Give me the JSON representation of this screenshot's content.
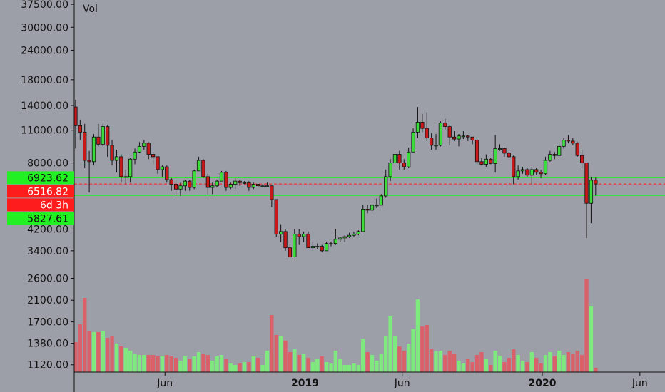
{
  "chart_data": {
    "type": "candlestick",
    "volume_label": "Vol",
    "log_scale": true,
    "ylim": [
      1043,
      39130
    ],
    "yticks": [
      {
        "value": 37500,
        "label": "37500.00"
      },
      {
        "value": 30000,
        "label": "30000.00"
      },
      {
        "value": 24000,
        "label": "24000.00"
      },
      {
        "value": 18000,
        "label": "18000.00"
      },
      {
        "value": 14000,
        "label": "14000.00"
      },
      {
        "value": 11000,
        "label": "11000.00"
      },
      {
        "value": 8000,
        "label": "8000.00"
      },
      {
        "value": 4200,
        "label": "4200.00"
      },
      {
        "value": 3400,
        "label": "3400.00"
      },
      {
        "value": 2600,
        "label": "2600.00"
      },
      {
        "value": 2100,
        "label": "2100.00"
      },
      {
        "value": 1700,
        "label": "1700.00"
      },
      {
        "value": 1380,
        "label": "1380.00"
      },
      {
        "value": 1120,
        "label": "1120.00"
      }
    ],
    "xlim": [
      -0.3,
      129.2
    ],
    "xticks": [
      {
        "value": 19.6,
        "label": "Jun"
      },
      {
        "value": 50.3,
        "label": "2019"
      },
      {
        "value": 71.6,
        "label": "Jun"
      },
      {
        "value": 102.3,
        "label": "2020"
      },
      {
        "value": 123.7,
        "label": "Jun"
      }
    ],
    "up_color": "#3ddc3d",
    "down_color": "#c81818",
    "volume_up_color": "#7fe87f",
    "volume_down_color": "#d9626a",
    "vlim": [
      0,
      140
    ],
    "open": [
      13800,
      11500,
      10800,
      8200,
      8100,
      10300,
      9600,
      11400,
      9500,
      8200,
      8500,
      7000,
      7000,
      8300,
      8900,
      9400,
      9700,
      8700,
      8500,
      7500,
      7700,
      6800,
      6500,
      6200,
      6400,
      6700,
      6300,
      7400,
      8200,
      7000,
      6300,
      6400,
      6700,
      7300,
      6300,
      6500,
      6700,
      6600,
      6600,
      6300,
      6500,
      6400,
      6400,
      6400,
      5600,
      4000,
      4100,
      3500,
      3200,
      4000,
      3900,
      4000,
      3500,
      3550,
      3550,
      3400,
      3650,
      3650,
      3800,
      3850,
      3900,
      3950,
      4000,
      4100,
      5100,
      5050,
      5300,
      5300,
      5800,
      7000,
      8000,
      8700,
      8000,
      7700,
      8900,
      10800,
      11900,
      11200,
      10200,
      9500,
      9500,
      11800,
      11400,
      10300,
      10100,
      10400,
      10400,
      10300,
      10000,
      8100,
      7900,
      8300,
      7950,
      9200,
      9200,
      8800,
      8500,
      7000,
      7400,
      7500,
      7100,
      7500,
      7300,
      7200,
      8200,
      8700,
      8600,
      9400,
      10000,
      9900,
      9700,
      8600,
      8000,
      5400,
      6760
    ],
    "high": [
      14800,
      12200,
      11700,
      9000,
      10600,
      11700,
      11700,
      11600,
      10000,
      9100,
      8700,
      7500,
      8400,
      9200,
      9800,
      10000,
      9800,
      8900,
      8500,
      7800,
      7800,
      6900,
      6800,
      6600,
      6800,
      6800,
      7500,
      8500,
      8300,
      7200,
      6600,
      6800,
      7400,
      7400,
      6600,
      6900,
      6800,
      6700,
      6700,
      6600,
      6500,
      6500,
      6600,
      6400,
      5600,
      4400,
      4200,
      3600,
      4200,
      4200,
      4100,
      4100,
      3700,
      3650,
      3600,
      3700,
      3700,
      4200,
      3900,
      3950,
      4050,
      4100,
      4150,
      5300,
      5300,
      5350,
      5650,
      5900,
      7500,
      8300,
      8900,
      9000,
      8300,
      9300,
      11200,
      13800,
      12900,
      13100,
      10700,
      10600,
      12000,
      12300,
      11500,
      10900,
      10600,
      10900,
      10500,
      10300,
      10100,
      8400,
      8700,
      8400,
      10500,
      9600,
      9300,
      8900,
      8600,
      7800,
      7700,
      7600,
      7700,
      7600,
      7500,
      8500,
      9000,
      8900,
      9600,
      10200,
      10500,
      10200,
      9800,
      9100,
      8000,
      7000,
      6923.62
    ],
    "low": [
      9200,
      10000,
      7600,
      6000,
      7800,
      9400,
      9400,
      8500,
      7800,
      7300,
      6600,
      6500,
      6600,
      7900,
      8800,
      9100,
      8300,
      7900,
      7200,
      7000,
      6600,
      6100,
      5800,
      5800,
      6100,
      6100,
      6200,
      7400,
      6900,
      5900,
      5900,
      6300,
      6700,
      6100,
      6200,
      6200,
      6400,
      6500,
      6100,
      6200,
      6300,
      6300,
      6300,
      5200,
      3900,
      3700,
      3400,
      3200,
      3200,
      3600,
      3700,
      3500,
      3400,
      3450,
      3350,
      3400,
      3550,
      3600,
      3700,
      3700,
      3850,
      3900,
      3950,
      4100,
      4900,
      4950,
      5150,
      5300,
      5700,
      6700,
      7600,
      7500,
      7500,
      7600,
      8900,
      10200,
      10800,
      9900,
      9100,
      9100,
      9400,
      11100,
      9500,
      9900,
      9400,
      10100,
      9900,
      9600,
      7900,
      7800,
      7700,
      7900,
      7300,
      9000,
      8500,
      8400,
      6500,
      6800,
      7200,
      7000,
      6500,
      7100,
      6900,
      7100,
      8100,
      8300,
      8600,
      9200,
      9700,
      9500,
      8500,
      7600,
      3850,
      4450,
      5827.61
    ],
    "close": [
      11500,
      10800,
      8200,
      8100,
      10300,
      9600,
      11400,
      9500,
      8200,
      8500,
      7000,
      7000,
      8300,
      8900,
      9400,
      9700,
      8700,
      8500,
      7500,
      7700,
      6800,
      6500,
      6200,
      6400,
      6700,
      6300,
      7400,
      8200,
      7000,
      6300,
      6400,
      6700,
      7300,
      6300,
      6500,
      6700,
      6600,
      6600,
      6300,
      6500,
      6400,
      6400,
      6400,
      5600,
      4000,
      4100,
      3500,
      3200,
      4000,
      3900,
      4000,
      3500,
      3550,
      3550,
      3400,
      3650,
      3650,
      3800,
      3850,
      3900,
      3950,
      4000,
      4100,
      5100,
      5050,
      5300,
      5300,
      5800,
      7000,
      8000,
      8700,
      8000,
      7700,
      8900,
      10800,
      11900,
      11200,
      10200,
      9500,
      9500,
      11800,
      11400,
      10300,
      10100,
      10400,
      10400,
      10300,
      10000,
      8100,
      7900,
      8300,
      7950,
      9200,
      9200,
      8800,
      8500,
      7000,
      7400,
      7500,
      7100,
      7500,
      7300,
      7200,
      8200,
      8700,
      8600,
      9400,
      10000,
      9900,
      9700,
      8600,
      8000,
      5400,
      6760,
      6516.82
    ],
    "volume": [
      42,
      67,
      104,
      58,
      56,
      56,
      58,
      48,
      50,
      40,
      36,
      34,
      30,
      26,
      24,
      24,
      24,
      24,
      22,
      22,
      24,
      22,
      20,
      16,
      22,
      18,
      22,
      28,
      26,
      24,
      16,
      22,
      24,
      18,
      12,
      10,
      12,
      14,
      14,
      22,
      20,
      10,
      30,
      80,
      52,
      50,
      44,
      28,
      32,
      24,
      26,
      20,
      14,
      18,
      22,
      14,
      12,
      30,
      18,
      10,
      10,
      12,
      10,
      46,
      28,
      24,
      16,
      26,
      50,
      78,
      50,
      36,
      30,
      40,
      60,
      102,
      64,
      66,
      32,
      30,
      30,
      24,
      30,
      26,
      16,
      12,
      18,
      14,
      24,
      28,
      18,
      10,
      30,
      22,
      14,
      20,
      32,
      24,
      16,
      14,
      28,
      20,
      12,
      24,
      28,
      22,
      30,
      24,
      28,
      26,
      30,
      24,
      130,
      92,
      6
    ],
    "levels": [
      {
        "value": 6923.62,
        "color": "#22f022",
        "dashed": false
      },
      {
        "value": 6516.82,
        "color": "#ff1c1c",
        "dashed": true
      },
      {
        "value": 5827.61,
        "color": "#22f022",
        "dashed": false
      }
    ],
    "countdown": "6d 3h"
  }
}
